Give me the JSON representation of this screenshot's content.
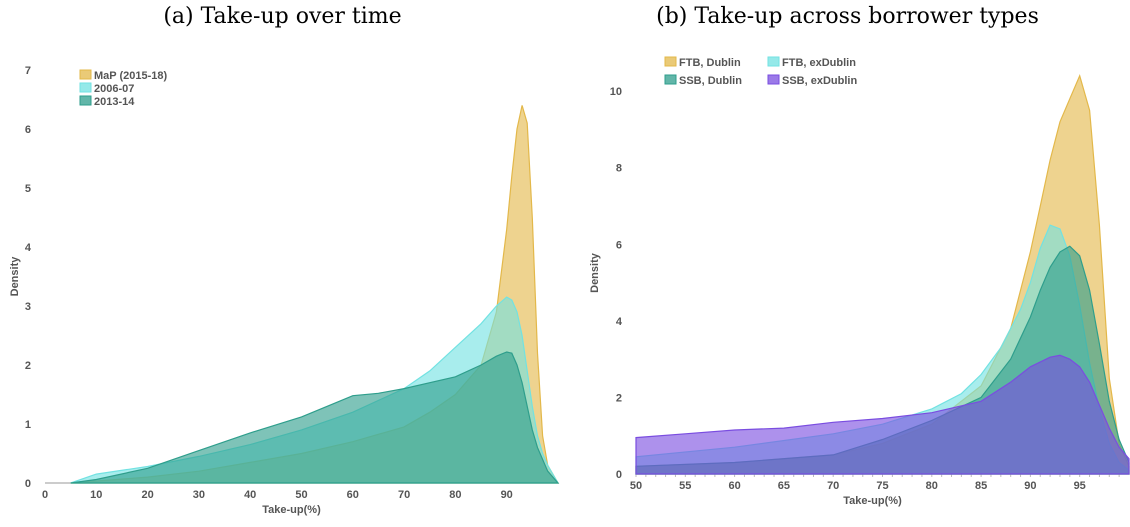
{
  "chart_data": [
    {
      "type": "area",
      "title": "(a) Take-up over time",
      "xlabel": "Take-up(%)",
      "ylabel": "Density",
      "xlim": [
        0,
        100
      ],
      "ylim": [
        0,
        7
      ],
      "xticks": [
        0,
        10,
        20,
        30,
        40,
        50,
        60,
        70,
        80,
        90
      ],
      "yticks": [
        0,
        1,
        2,
        3,
        4,
        5,
        6,
        7
      ],
      "legend_position": "top-left",
      "series": [
        {
          "name": "MaP (2015-18)",
          "color": "#e3b84a",
          "x": [
            5,
            20,
            30,
            40,
            50,
            60,
            70,
            75,
            80,
            85,
            88,
            90,
            91,
            92,
            93,
            94,
            95,
            96,
            97,
            98,
            100
          ],
          "y": [
            0,
            0.1,
            0.2,
            0.35,
            0.5,
            0.7,
            0.95,
            1.2,
            1.5,
            2.0,
            2.9,
            4.3,
            5.2,
            6.0,
            6.4,
            6.1,
            4.5,
            2.2,
            0.8,
            0.3,
            0
          ]
        },
        {
          "name": "2006-07",
          "color": "#72e2e2",
          "x": [
            5,
            10,
            20,
            30,
            40,
            50,
            60,
            70,
            75,
            80,
            85,
            88,
            90,
            91,
            92,
            93,
            94,
            95,
            96,
            97,
            98,
            100
          ],
          "y": [
            0,
            0.15,
            0.28,
            0.45,
            0.65,
            0.9,
            1.2,
            1.6,
            1.9,
            2.3,
            2.7,
            3.0,
            3.15,
            3.1,
            2.9,
            2.5,
            1.9,
            1.3,
            0.8,
            0.5,
            0.3,
            0
          ]
        },
        {
          "name": "2013-14",
          "color": "#2e9e8c",
          "x": [
            5,
            10,
            20,
            30,
            40,
            50,
            55,
            60,
            65,
            70,
            75,
            80,
            85,
            88,
            90,
            91,
            92,
            93,
            94,
            95,
            96,
            97,
            98,
            100
          ],
          "y": [
            0,
            0.06,
            0.25,
            0.55,
            0.85,
            1.12,
            1.3,
            1.48,
            1.52,
            1.6,
            1.7,
            1.8,
            2.0,
            2.15,
            2.22,
            2.2,
            2.0,
            1.7,
            1.3,
            0.9,
            0.6,
            0.4,
            0.2,
            0
          ]
        }
      ]
    },
    {
      "type": "area",
      "title": "(b) Take-up across borrower types",
      "xlabel": "Take-up(%)",
      "ylabel": "Density",
      "xlim": [
        50,
        100
      ],
      "ylim": [
        0,
        10.5
      ],
      "xticks": [
        50,
        55,
        60,
        65,
        70,
        75,
        80,
        85,
        90,
        95
      ],
      "yticks": [
        0,
        2,
        4,
        6,
        8,
        10
      ],
      "legend_position": "top-left",
      "series": [
        {
          "name": "FTB, Dublin",
          "color": "#e3b84a",
          "x": [
            50,
            60,
            70,
            75,
            80,
            85,
            88,
            90,
            91,
            92,
            93,
            94,
            95,
            96,
            97,
            98,
            99,
            100
          ],
          "y": [
            0.2,
            0.3,
            0.5,
            0.8,
            1.3,
            2.3,
            3.8,
            5.8,
            7.0,
            8.2,
            9.2,
            9.8,
            10.4,
            9.5,
            6.5,
            2.5,
            0.8,
            0.2
          ]
        },
        {
          "name": "FTB, exDublin",
          "color": "#72e2e2",
          "x": [
            50,
            60,
            70,
            75,
            80,
            83,
            85,
            87,
            89,
            90,
            91,
            92,
            93,
            94,
            95,
            96,
            97,
            98,
            99,
            100
          ],
          "y": [
            0.45,
            0.7,
            1.05,
            1.3,
            1.7,
            2.1,
            2.6,
            3.3,
            4.3,
            5.0,
            5.9,
            6.5,
            6.4,
            5.7,
            4.4,
            2.9,
            1.7,
            0.8,
            0.3,
            0.1
          ]
        },
        {
          "name": "SSB, Dublin",
          "color": "#2e9e8c",
          "x": [
            50,
            60,
            70,
            75,
            80,
            85,
            88,
            90,
            91,
            92,
            93,
            94,
            95,
            96,
            97,
            98,
            99,
            100
          ],
          "y": [
            0.2,
            0.3,
            0.5,
            0.9,
            1.4,
            2.0,
            3.0,
            4.1,
            4.8,
            5.4,
            5.8,
            5.95,
            5.7,
            4.8,
            3.4,
            1.9,
            0.9,
            0.3
          ]
        },
        {
          "name": "SSB, exDublin",
          "color": "#7a4de0",
          "x": [
            50,
            55,
            60,
            65,
            70,
            75,
            80,
            85,
            88,
            90,
            92,
            93,
            94,
            95,
            96,
            97,
            98,
            99,
            100
          ],
          "y": [
            0.95,
            1.05,
            1.15,
            1.2,
            1.35,
            1.45,
            1.6,
            1.9,
            2.4,
            2.8,
            3.05,
            3.1,
            3.0,
            2.8,
            2.4,
            1.8,
            1.2,
            0.7,
            0.4
          ]
        }
      ]
    }
  ]
}
